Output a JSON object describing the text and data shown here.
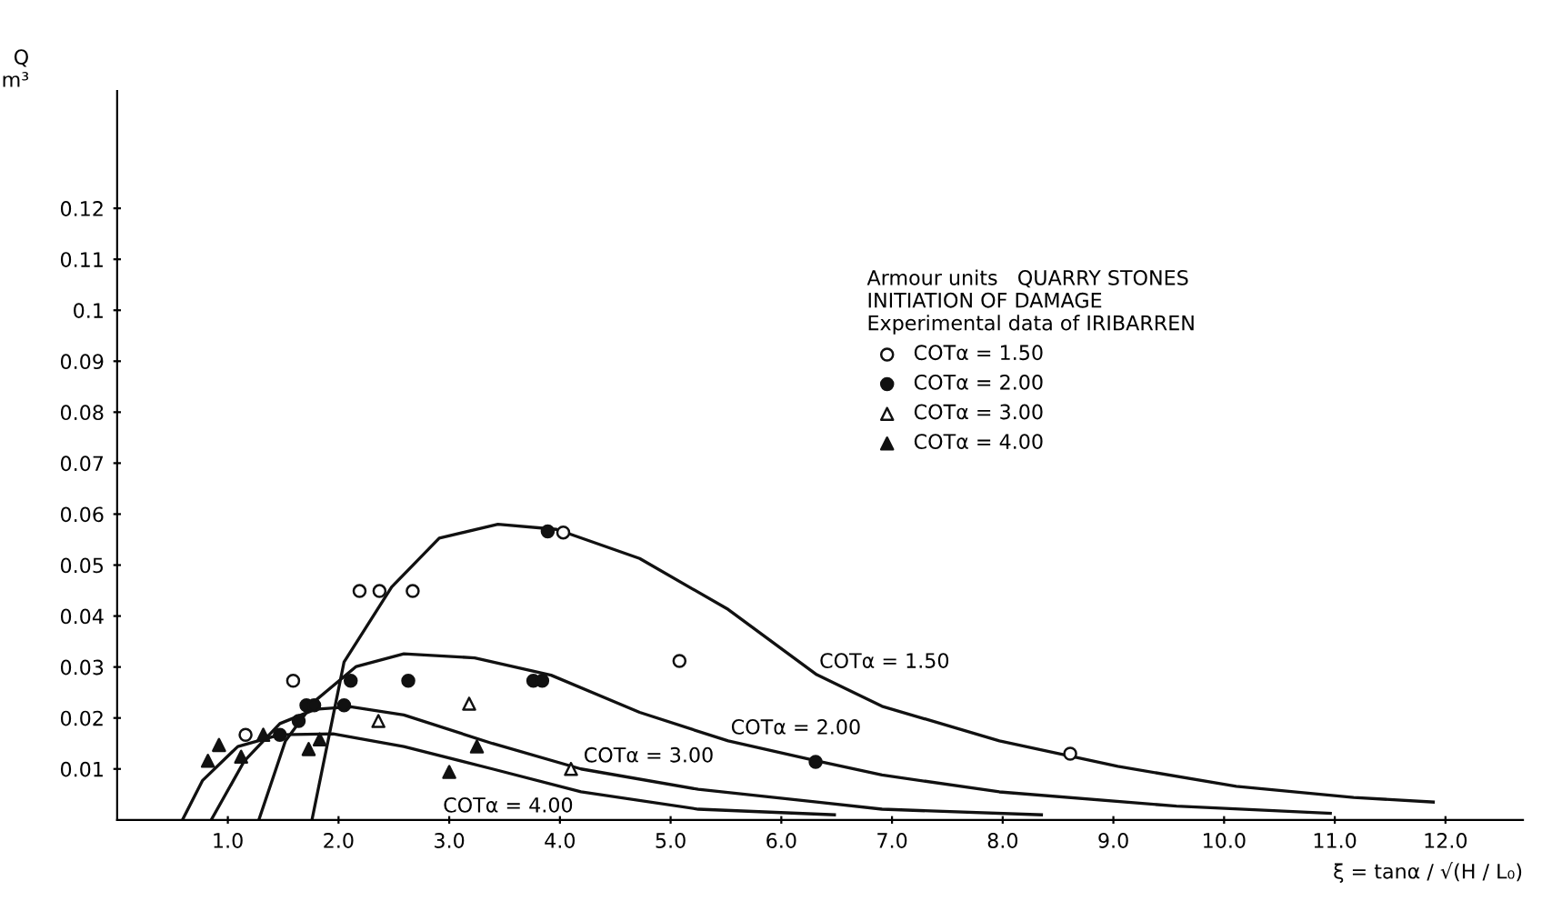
{
  "chart_data": {
    "type": "scatter",
    "xlabel": "ξ = tanα / √(H / L₀)",
    "ylabel": "Q\nm³",
    "legend_title": "Armour units   QUARRY STONES\nINITIATION OF DAMAGE\nExperimental data of IRIBARREN",
    "legend": "top right",
    "grid": false,
    "xlim": [
      0,
      12.7
    ],
    "ylim": [
      0,
      0.143
    ],
    "xticks": [
      {
        "value": 1,
        "label": "1.0"
      },
      {
        "value": 2,
        "label": "2.0"
      },
      {
        "value": 3,
        "label": "3.0"
      },
      {
        "value": 4,
        "label": "4.0"
      },
      {
        "value": 5,
        "label": "5.0"
      },
      {
        "value": 6,
        "label": "6.0"
      },
      {
        "value": 7,
        "label": "7.0"
      },
      {
        "value": 8,
        "label": "8.0"
      },
      {
        "value": 9,
        "label": "9.0"
      },
      {
        "value": 10,
        "label": "10.0"
      },
      {
        "value": 11,
        "label": "11.0"
      },
      {
        "value": 12,
        "label": "12.0"
      }
    ],
    "yticks": [
      0.01,
      0.02,
      0.03,
      0.04,
      0.05,
      0.06,
      0.07,
      0.08,
      0.09,
      0.1,
      0.11,
      0.12
    ],
    "series": [
      {
        "name": "COTα = 1.50",
        "marker": "circle",
        "color": "#ffffff",
        "x": [
          1.16,
          1.59,
          2.19,
          2.37,
          2.67,
          4.03,
          5.08,
          8.61
        ],
        "values": [
          0.0167,
          0.0273,
          0.0449,
          0.0449,
          0.0449,
          0.0564,
          0.0312,
          0.013
        ]
      },
      {
        "name": "COTα = 2.00",
        "marker": "circle",
        "color": "#111111",
        "x": [
          1.47,
          1.64,
          1.71,
          1.78,
          2.05,
          2.11,
          2.63,
          3.76,
          3.84,
          3.89,
          6.31
        ],
        "values": [
          0.0167,
          0.0194,
          0.0225,
          0.0225,
          0.0225,
          0.0273,
          0.0273,
          0.0273,
          0.0273,
          0.0566,
          0.0114
        ]
      },
      {
        "name": "COTα = 3.00",
        "marker": "triangle",
        "color": "#ffffff",
        "x": [
          2.36,
          3.18,
          4.1
        ],
        "values": [
          0.0194,
          0.0228,
          0.01
        ]
      },
      {
        "name": "COTα = 4.00",
        "marker": "triangle",
        "color": "#111111",
        "x": [
          0.82,
          0.92,
          1.12,
          1.32,
          1.73,
          1.83,
          3.0,
          3.25
        ],
        "values": [
          0.0116,
          0.0147,
          0.0124,
          0.0167,
          0.0139,
          0.0158,
          0.0094,
          0.0144
        ]
      },
      {
        "name": "COTα = 1.50",
        "type": "line",
        "color": "#111111",
        "x": [
          1.76,
          2.05,
          2.48,
          2.91,
          3.44,
          3.97,
          4.72,
          5.52,
          6.32,
          6.91,
          7.97,
          9.04,
          10.11,
          11.17,
          11.89
        ],
        "values": [
          0,
          0.031,
          0.0457,
          0.0553,
          0.058,
          0.057,
          0.0513,
          0.0413,
          0.0285,
          0.0223,
          0.0155,
          0.0105,
          0.0066,
          0.0044,
          0.0035
        ]
      },
      {
        "name": "COTα = 2.00",
        "type": "line",
        "color": "#111111",
        "x": [
          1.28,
          1.52,
          1.79,
          2.16,
          2.59,
          3.23,
          3.92,
          4.72,
          5.52,
          6.32,
          6.91,
          7.97,
          9.57,
          10.96
        ],
        "values": [
          0,
          0.0155,
          0.0234,
          0.0301,
          0.0326,
          0.0318,
          0.0284,
          0.0211,
          0.0155,
          0.0116,
          0.0088,
          0.0055,
          0.0027,
          0.0013
        ]
      },
      {
        "name": "COTα = 3.00",
        "type": "line",
        "color": "#111111",
        "x": [
          0.85,
          1.15,
          1.47,
          1.79,
          2.11,
          2.59,
          3.39,
          4.19,
          5.25,
          6.32,
          6.91,
          8.35
        ],
        "values": [
          0,
          0.0116,
          0.0189,
          0.0217,
          0.0222,
          0.0206,
          0.015,
          0.01,
          0.006,
          0.0035,
          0.0021,
          0.001
        ]
      },
      {
        "name": "COTα = 4.00",
        "type": "line",
        "color": "#111111",
        "x": [
          0.59,
          0.77,
          1.09,
          1.47,
          1.95,
          2.59,
          3.39,
          4.19,
          5.25,
          6.48
        ],
        "values": [
          0,
          0.0077,
          0.0144,
          0.0167,
          0.0169,
          0.0144,
          0.01,
          0.0055,
          0.0021,
          0.001
        ]
      }
    ]
  }
}
